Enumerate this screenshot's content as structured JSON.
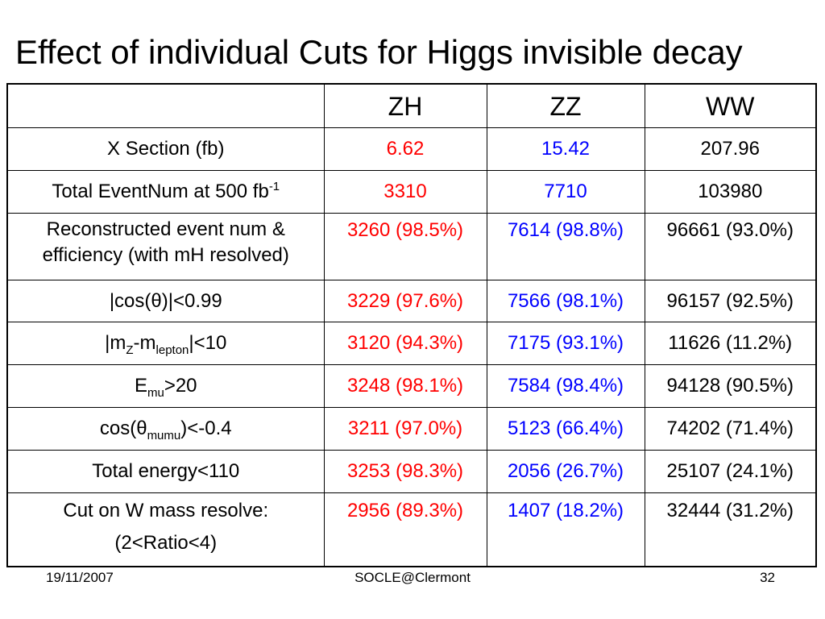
{
  "title": "Effect of individual Cuts for Higgs invisible decay",
  "table": {
    "headers": [
      "",
      "ZH",
      "ZZ",
      "WW"
    ],
    "rows": [
      {
        "label": "X Section (fb)",
        "zh": "6.62",
        "zz": "15.42",
        "ww": "207.96"
      },
      {
        "label_main": "Total EventNum at 500 fb",
        "label_sup": "-1",
        "zh": "3310",
        "zz": "7710",
        "ww": "103980"
      },
      {
        "label_line1": "Reconstructed event num &",
        "label_line2": "efficiency (with mH resolved)",
        "zh": "3260 (98.5%)",
        "zz": "7614 (98.8%)",
        "ww": "96661 (93.0%)"
      },
      {
        "label": "|cos(θ)|<0.99",
        "zh": "3229 (97.6%)",
        "zz": "7566 (98.1%)",
        "ww": "96157 (92.5%)"
      },
      {
        "label_a": "|m",
        "label_sub1": "Z",
        "label_b": "-m",
        "label_sub2": "lepton",
        "label_c": "|<10",
        "zh": "3120 (94.3%)",
        "zz": "7175 (93.1%)",
        "ww": "11626 (11.2%)"
      },
      {
        "label_a": "E",
        "label_sub": "mu",
        "label_b": ">20",
        "zh": "3248 (98.1%)",
        "zz": "7584 (98.4%)",
        "ww": "94128 (90.5%)"
      },
      {
        "label_a": "cos(θ",
        "label_sub": "mumu",
        "label_b": ")<-0.4",
        "zh": "3211 (97.0%)",
        "zz": "5123 (66.4%)",
        "ww": "74202 (71.4%)"
      },
      {
        "label": "Total energy<110",
        "zh": "3253 (98.3%)",
        "zz": "2056 (26.7%)",
        "ww": "25107 (24.1%)"
      },
      {
        "label_line1": "Cut on W mass resolve:",
        "label_line2": "(2<Ratio<4)",
        "zh": "2956 (89.3%)",
        "zz": "1407 (18.2%)",
        "ww": "32444 (31.2%)"
      }
    ]
  },
  "footer": {
    "date": "19/11/2007",
    "venue": "SOCLE@Clermont",
    "page": "32"
  },
  "colors": {
    "zh": "#ff0000",
    "zz": "#0000ff",
    "ww": "#000000"
  }
}
